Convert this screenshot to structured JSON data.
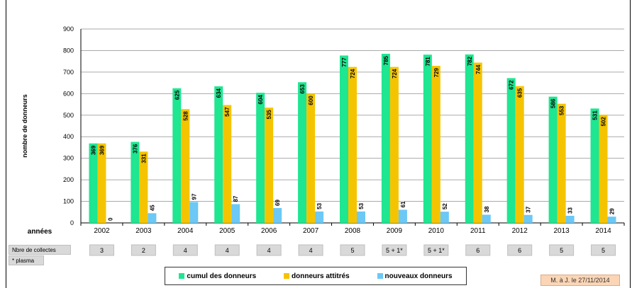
{
  "chart_data": {
    "type": "bar",
    "title": "",
    "ylabel": "nombre de donneurs",
    "xlabel": "années",
    "ylim": [
      0,
      900
    ],
    "yticks": [
      0,
      100,
      200,
      300,
      400,
      500,
      600,
      700,
      800,
      900
    ],
    "categories": [
      "2002",
      "2003",
      "2004",
      "2005",
      "2006",
      "2007",
      "2008",
      "2009",
      "2010",
      "2011",
      "2012",
      "2013",
      "2014"
    ],
    "series": [
      {
        "name": "cumul des donneurs",
        "color": "#1ee691",
        "values": [
          369,
          376,
          625,
          634,
          604,
          653,
          777,
          785,
          781,
          782,
          672,
          586,
          531
        ]
      },
      {
        "name": "donneurs attitrés",
        "color": "#f5c400",
        "values": [
          369,
          331,
          528,
          547,
          535,
          600,
          724,
          724,
          729,
          744,
          635,
          553,
          502
        ]
      },
      {
        "name": "nouveaux donneurs",
        "color": "#6cc8f5",
        "values": [
          0,
          45,
          97,
          87,
          69,
          53,
          53,
          61,
          52,
          38,
          37,
          33,
          29
        ]
      }
    ],
    "legend_position": "bottom",
    "grid": true
  },
  "collectes": {
    "label": "Nbre de collectes",
    "footnote": "* plasma",
    "values": [
      "3",
      "2",
      "4",
      "4",
      "4",
      "4",
      "5",
      "5 + 1*",
      "5 + 1*",
      "6",
      "6",
      "5",
      "5"
    ]
  },
  "update_note": "M. à J. le 27/11/2014"
}
